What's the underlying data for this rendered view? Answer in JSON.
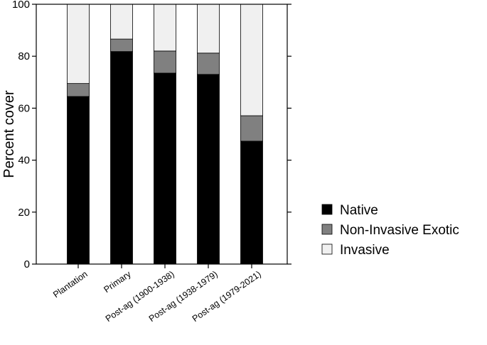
{
  "chart_data": {
    "type": "bar",
    "stacked": true,
    "title": "",
    "xlabel": "",
    "ylabel": "Percent cover",
    "ylim": [
      0,
      100
    ],
    "yticks": [
      0,
      20,
      40,
      60,
      80,
      100
    ],
    "categories": [
      "Plantation",
      "Primary",
      "Post-ag (1900-1938)",
      "Post-ag (1938-1979)",
      "Post-ag (1979-2021)"
    ],
    "series": [
      {
        "name": "Native",
        "color": "#000000",
        "values": [
          64.5,
          81.8,
          73.5,
          73.0,
          47.3
        ]
      },
      {
        "name": "Non-Invasive Exotic",
        "color": "#808080",
        "values": [
          5.0,
          4.8,
          8.5,
          8.2,
          9.8
        ]
      },
      {
        "name": "Invasive",
        "color": "#f0f0f0",
        "values": [
          30.5,
          13.4,
          18.0,
          18.8,
          42.9
        ]
      }
    ],
    "grid": false,
    "legend": "right"
  }
}
